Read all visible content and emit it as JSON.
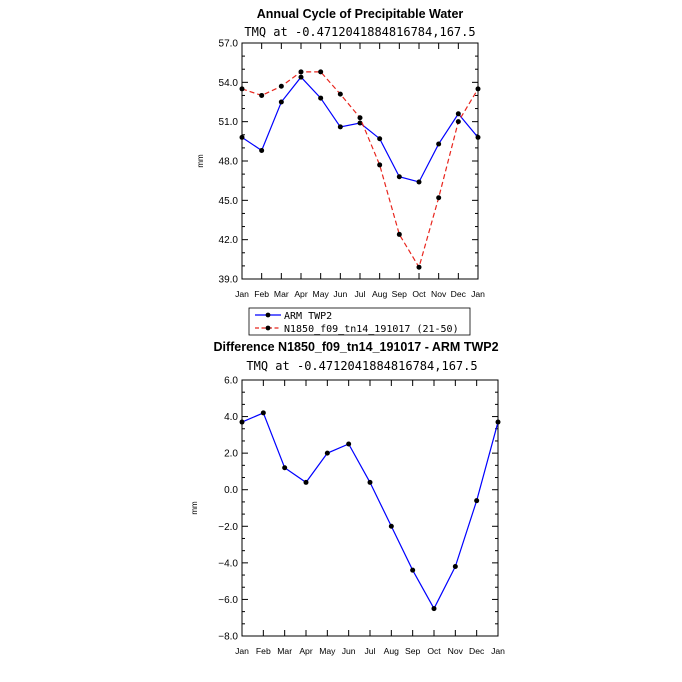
{
  "chart_data": [
    {
      "type": "line",
      "title": "Annual Cycle of Precipitable Water",
      "subtitle": "TMQ at -0.4712041884816784,167.5",
      "xlabel": "",
      "ylabel": "mm",
      "categories": [
        "Jan",
        "Feb",
        "Mar",
        "Apr",
        "May",
        "Jun",
        "Jul",
        "Aug",
        "Sep",
        "Oct",
        "Nov",
        "Dec",
        "Jan"
      ],
      "ylim": [
        39.0,
        57.0
      ],
      "yticks": [
        "57.0",
        "54.0",
        "51.0",
        "48.0",
        "45.0",
        "42.0",
        "39.0"
      ],
      "ytick_values": [
        57,
        54,
        51,
        48,
        45,
        42,
        39
      ],
      "series": [
        {
          "name": "ARM TWP2",
          "color": "#0000ff",
          "dash": "solid",
          "values": [
            49.8,
            48.8,
            52.5,
            54.4,
            52.8,
            50.6,
            50.9,
            49.7,
            46.8,
            46.4,
            49.3,
            51.6,
            49.8
          ]
        },
        {
          "name": "N1850_f09_tn14_191017 (21-50)",
          "color": "#e8261e",
          "dash": "dashed",
          "values": [
            53.5,
            53.0,
            53.7,
            54.8,
            54.8,
            53.1,
            51.3,
            47.7,
            42.4,
            39.9,
            45.2,
            51.0,
            53.5
          ]
        }
      ],
      "legend": "below"
    },
    {
      "type": "line",
      "title": "Difference N1850_f09_tn14_191017 - ARM TWP2",
      "subtitle": "TMQ at -0.4712041884816784,167.5",
      "xlabel": "",
      "ylabel": "mm",
      "categories": [
        "Jan",
        "Feb",
        "Mar",
        "Apr",
        "May",
        "Jun",
        "Jul",
        "Aug",
        "Sep",
        "Oct",
        "Nov",
        "Dec",
        "Jan"
      ],
      "ylim": [
        -8.0,
        6.0
      ],
      "yticks": [
        "6.0",
        "4.0",
        "2.0",
        "0.0",
        "-2.0",
        "-4.0",
        "-6.0",
        "-8.0"
      ],
      "ytick_values": [
        6,
        4,
        2,
        0,
        -2,
        -4,
        -6,
        -8
      ],
      "series": [
        {
          "name": "Difference",
          "color": "#0000ff",
          "dash": "solid",
          "values": [
            3.7,
            4.2,
            1.2,
            0.4,
            2.0,
            2.5,
            0.4,
            -2.0,
            -4.4,
            -6.5,
            -4.2,
            -0.6,
            3.7
          ]
        }
      ]
    }
  ]
}
